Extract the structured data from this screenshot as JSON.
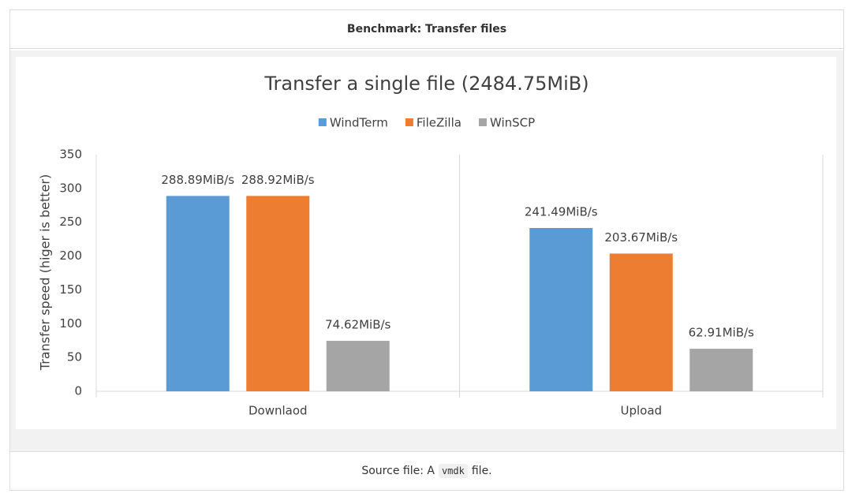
{
  "header": {
    "title": "Benchmark: Transfer files"
  },
  "chart_data": {
    "type": "bar",
    "title": "Transfer a single file (2484.75MiB)",
    "y_label": "Transfer speed (higer is better)",
    "categories": [
      "Downlaod",
      "Upload"
    ],
    "series": [
      {
        "name": "WindTerm",
        "color": "#5b9bd5",
        "values": [
          288.89,
          241.49
        ],
        "value_labels": [
          "288.89MiB/s",
          "241.49MiB/s"
        ]
      },
      {
        "name": "FileZilla",
        "color": "#ed7d31",
        "values": [
          288.92,
          203.67
        ],
        "value_labels": [
          "288.92MiB/s",
          "203.67MiB/s"
        ]
      },
      {
        "name": "WinSCP",
        "color": "#a5a5a5",
        "values": [
          74.62,
          62.91
        ],
        "value_labels": [
          "74.62MiB/s",
          "62.91MiB/s"
        ]
      }
    ],
    "ylim": [
      0,
      350
    ],
    "yticks": [
      0,
      50,
      100,
      150,
      200,
      250,
      300,
      350
    ],
    "legend": "top"
  },
  "footer": {
    "before": "Source file: A",
    "code": "vmdk",
    "after": "file."
  }
}
